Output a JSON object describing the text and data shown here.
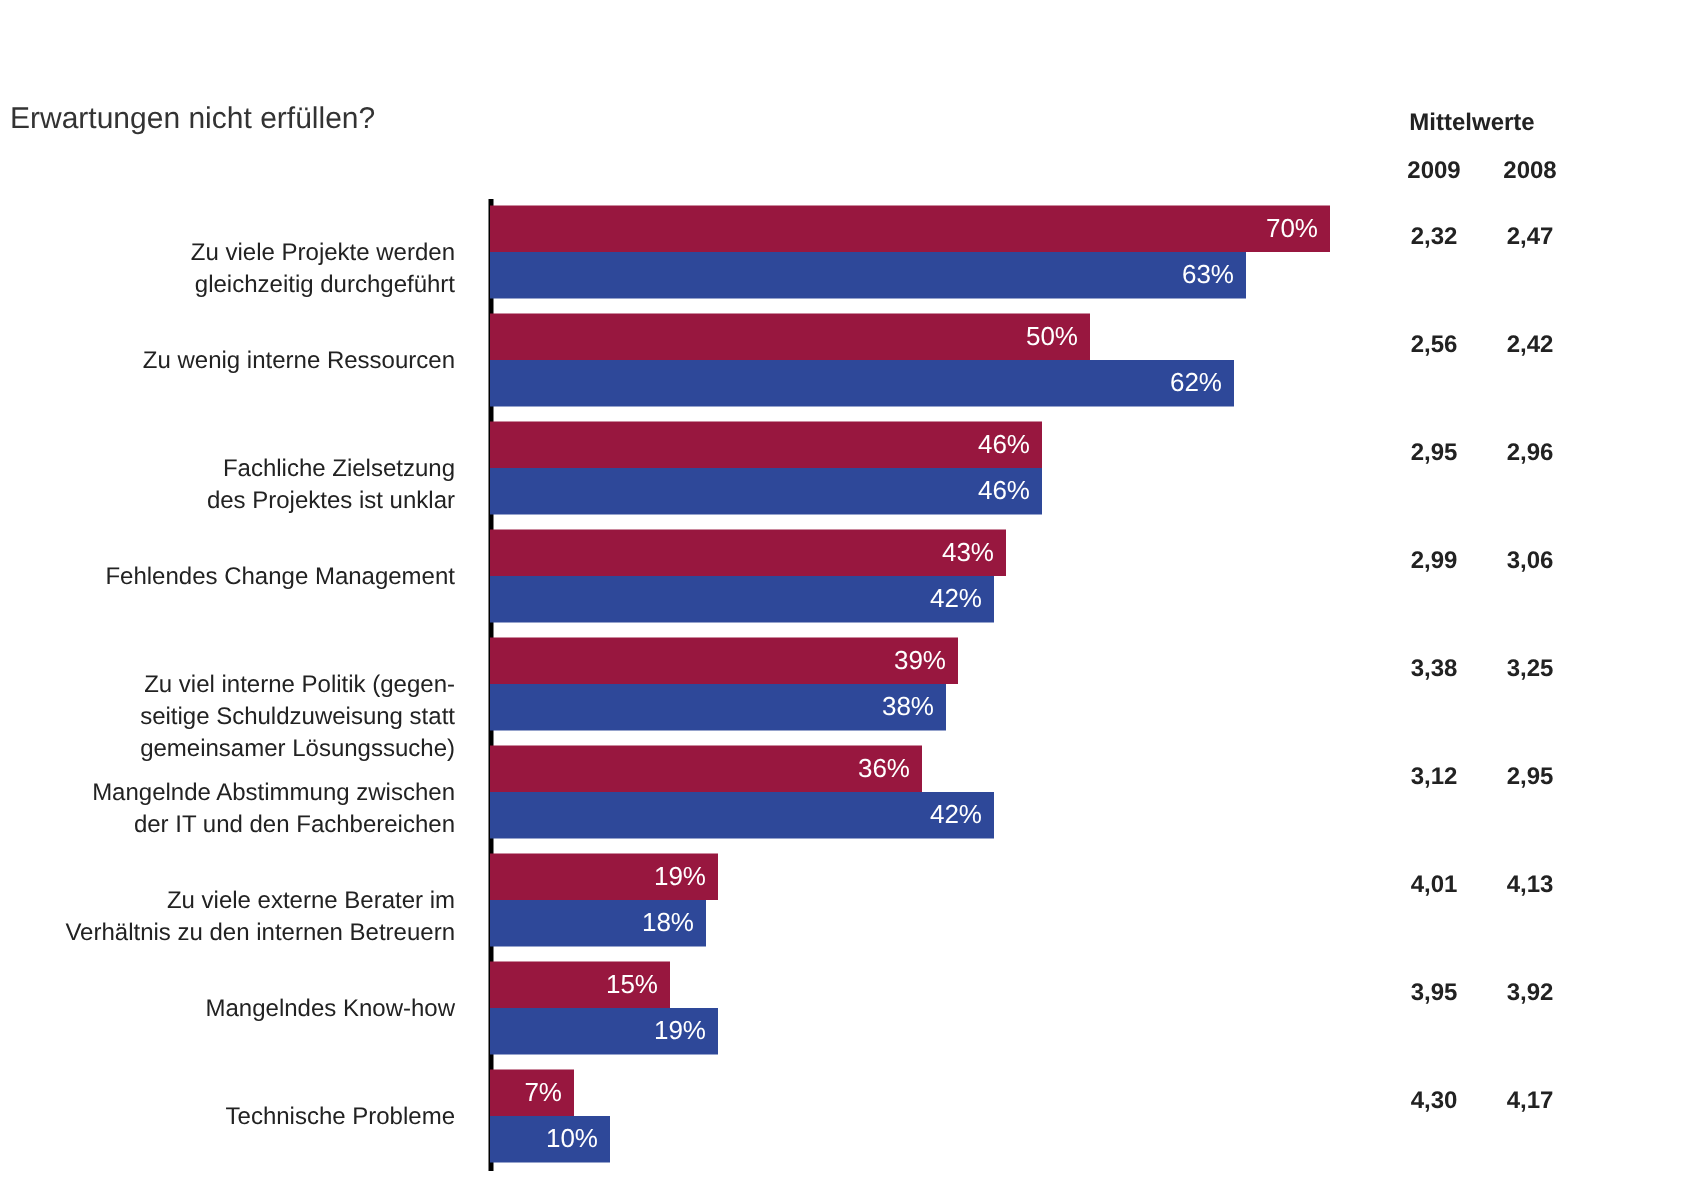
{
  "chart_data": {
    "type": "bar",
    "orientation": "horizontal",
    "title": "Erwartungen nicht erfüllen?",
    "categories": [
      "Zu viele Projekte werden\ngleichzeitig durchgeführt",
      "Zu wenig interne Ressourcen",
      "Fachliche Zielsetzung\ndes Projektes ist unklar",
      "Fehlendes Change Management",
      "Zu viel interne Politik (gegen-\nseitige Schuldzuweisung statt\ngemeinsamer Lösungssuche)",
      "Mangelnde Abstimmung zwischen\nder IT und den Fachbereichen",
      "Zu viele externe Berater im\nVerhältnis zu den internen Betreuern",
      "Mangelndes Know-how",
      "Technische Probleme"
    ],
    "series": [
      {
        "color": "#98173f",
        "values": [
          70,
          50,
          46,
          43,
          39,
          36,
          19,
          15,
          7
        ],
        "value_labels": [
          "70%",
          "50%",
          "46%",
          "43%",
          "39%",
          "36%",
          "19%",
          "15%",
          "7%"
        ]
      },
      {
        "color": "#2e4899",
        "values": [
          63,
          62,
          46,
          42,
          38,
          42,
          18,
          19,
          10
        ],
        "value_labels": [
          "63%",
          "62%",
          "46%",
          "42%",
          "38%",
          "42%",
          "18%",
          "19%",
          "10%"
        ]
      }
    ],
    "tick_labels": "y",
    "annotations": [
      "Mittelwerte",
      "2009",
      "2008",
      "2,32",
      "2,47",
      "2,56",
      "2,42",
      "2,95",
      "2,96",
      "2,99",
      "3,06",
      "3,38",
      "3,25",
      "3,12",
      "2,95",
      "4,01",
      "4,13",
      "3,95",
      "3,92",
      "4,30",
      "4,17"
    ]
  }
}
